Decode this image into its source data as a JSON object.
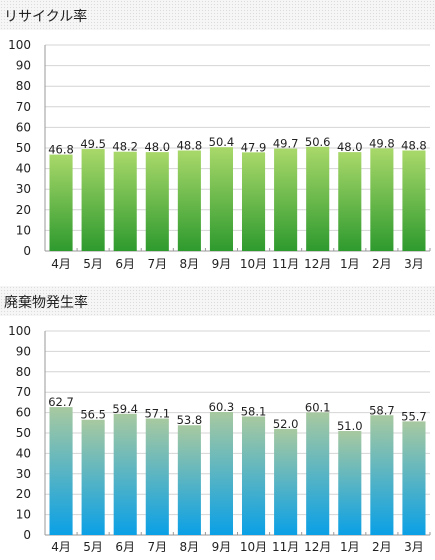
{
  "colors": {
    "panel0": {
      "top": "#a9d86a",
      "bottom": "#2e9a2e"
    },
    "panel1": {
      "top": "#a8c9a0",
      "bottom": "#0aa0e6"
    },
    "grid": "#d4d4d4",
    "axis": "#9a9a9a"
  },
  "chart_data": [
    {
      "type": "bar",
      "title": "リサイクル率",
      "categories": [
        "4月",
        "5月",
        "6月",
        "7月",
        "8月",
        "9月",
        "10月",
        "11月",
        "12月",
        "1月",
        "2月",
        "3月"
      ],
      "values": [
        46.8,
        49.5,
        48.2,
        48.0,
        48.8,
        50.4,
        47.9,
        49.7,
        50.6,
        48.0,
        49.8,
        48.8
      ],
      "value_labels": [
        "46.8",
        "49.5",
        "48.2",
        "48.0",
        "48.8",
        "50.4",
        "47.9",
        "49.7",
        "50.6",
        "48.0",
        "49.8",
        "48.8"
      ],
      "ylim": [
        0,
        100
      ],
      "yticks": [
        "0",
        "10",
        "20",
        "30",
        "40",
        "50",
        "60",
        "70",
        "80",
        "90",
        "100"
      ],
      "grid": true
    },
    {
      "type": "bar",
      "title": "廃棄物発生率",
      "categories": [
        "4月",
        "5月",
        "6月",
        "7月",
        "8月",
        "9月",
        "10月",
        "11月",
        "12月",
        "1月",
        "2月",
        "3月"
      ],
      "values": [
        62.7,
        56.5,
        59.4,
        57.1,
        53.8,
        60.3,
        58.1,
        52.0,
        60.1,
        51.0,
        58.7,
        55.7
      ],
      "value_labels": [
        "62.7",
        "56.5",
        "59.4",
        "57.1",
        "53.8",
        "60.3",
        "58.1",
        "52.0",
        "60.1",
        "51.0",
        "58.7",
        "55.7"
      ],
      "ylim": [
        0,
        100
      ],
      "yticks": [
        "0",
        "10",
        "20",
        "30",
        "40",
        "50",
        "60",
        "70",
        "80",
        "90",
        "100"
      ],
      "grid": true
    }
  ]
}
